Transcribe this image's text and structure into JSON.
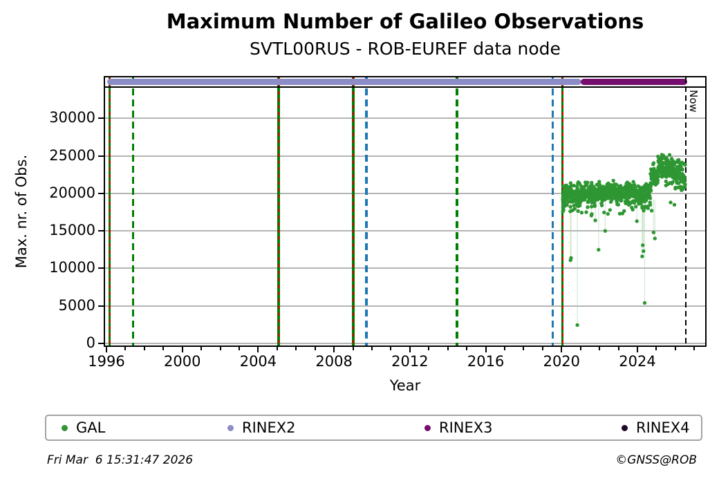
{
  "title": "Maximum Number of Galileo Observations",
  "subtitle": "SVTL00RUS - ROB-EUREF data node",
  "footer": {
    "timestamp": "Fri Mar  6 15:31:47 2026",
    "credit": "©GNSS@ROB"
  },
  "chart_data": {
    "type": "scatter",
    "title": "Maximum Number of Galileo Observations",
    "subtitle": "SVTL00RUS - ROB-EUREF data node",
    "xlabel": "Year",
    "ylabel": "Max. nr. of Obs.",
    "xlim": [
      1995.85,
      2027.6
    ],
    "ylim": [
      0,
      34800
    ],
    "grid": true,
    "legend_position": "bottom",
    "xticks_major": [
      1996,
      2000,
      2004,
      2008,
      2012,
      2016,
      2020,
      2024
    ],
    "xticks_minor_step": 1,
    "yticks": [
      0,
      5000,
      10000,
      15000,
      20000,
      25000,
      30000
    ],
    "now_line": {
      "year": 2026.55,
      "label": "Now",
      "color": "#000000",
      "style": "dashed"
    },
    "events": [
      {
        "year": 1996.18,
        "style": "combo-green-solid-red-dashed"
      },
      {
        "year": 1997.42,
        "style": "green-dashed"
      },
      {
        "year": 2005.08,
        "style": "combo-green-solid-red-dashed"
      },
      {
        "year": 2009.02,
        "style": "combo-green-solid-red-dashed"
      },
      {
        "year": 2009.72,
        "style": "blue-dashed"
      },
      {
        "year": 2014.5,
        "style": "green-dashed"
      },
      {
        "year": 2019.55,
        "style": "blue-dashed"
      },
      {
        "year": 2020.06,
        "style": "combo-green-solid-red-dashed"
      }
    ],
    "bars": [
      {
        "name": "RINEX2",
        "color": "#8c8cc6",
        "start": 1996.05,
        "end": 2021.05
      },
      {
        "name": "RINEX3",
        "color": "#760e6f",
        "start": 2021.0,
        "end": 2026.62
      }
    ],
    "gal_series": {
      "name": "GAL",
      "color": "#2e9632",
      "stem_color": "#9ccf9c",
      "point_radius": 2.7,
      "value_cap": 25700,
      "band_segments": [
        [
          2020.06,
          2020.2,
          30,
          19400,
          850
        ],
        [
          2020.2,
          2020.6,
          55,
          19900,
          700
        ],
        [
          2020.6,
          2021.0,
          55,
          19700,
          750
        ],
        [
          2021.0,
          2021.45,
          62,
          20100,
          700
        ],
        [
          2021.45,
          2021.9,
          62,
          19800,
          720
        ],
        [
          2021.9,
          2022.35,
          62,
          20000,
          680
        ],
        [
          2022.35,
          2022.8,
          62,
          20200,
          680
        ],
        [
          2022.8,
          2023.3,
          66,
          19900,
          680
        ],
        [
          2023.3,
          2023.8,
          66,
          20100,
          680
        ],
        [
          2023.8,
          2024.3,
          66,
          19800,
          720
        ],
        [
          2024.3,
          2024.68,
          48,
          19900,
          780
        ],
        [
          2024.68,
          2025.08,
          55,
          21900,
          900
        ],
        [
          2025.08,
          2025.5,
          58,
          23600,
          750
        ],
        [
          2025.5,
          2025.85,
          50,
          23100,
          850
        ],
        [
          2025.85,
          2026.15,
          45,
          22800,
          950
        ],
        [
          2026.15,
          2026.52,
          42,
          22600,
          1300
        ]
      ],
      "outliers": [
        [
          2020.07,
          17600
        ],
        [
          2020.09,
          18200
        ],
        [
          2020.47,
          11100
        ],
        [
          2020.5,
          11400
        ],
        [
          2020.83,
          2450
        ],
        [
          2021.3,
          17500
        ],
        [
          2021.57,
          17050
        ],
        [
          2021.78,
          16400
        ],
        [
          2021.95,
          12500
        ],
        [
          2022.3,
          15000
        ],
        [
          2023.97,
          16300
        ],
        [
          2024.25,
          11600
        ],
        [
          2024.28,
          13100
        ],
        [
          2024.32,
          12300
        ],
        [
          2024.38,
          5400
        ],
        [
          2024.75,
          17700
        ],
        [
          2024.85,
          14800
        ],
        [
          2024.92,
          14000
        ],
        [
          2025.75,
          18800
        ],
        [
          2025.95,
          18500
        ]
      ]
    },
    "legend": [
      {
        "label": "GAL",
        "color": "#2e9632"
      },
      {
        "label": "RINEX2",
        "color": "#8c8cc6"
      },
      {
        "label": "RINEX3",
        "color": "#760e6f"
      },
      {
        "label": "RINEX4",
        "color": "#1d0a26"
      }
    ]
  },
  "colors": {
    "green_line": "#008000",
    "red_line": "#d40000",
    "blue_line": "#1f77b4",
    "gridline": "#b4b4b4",
    "frame": "#000000"
  }
}
